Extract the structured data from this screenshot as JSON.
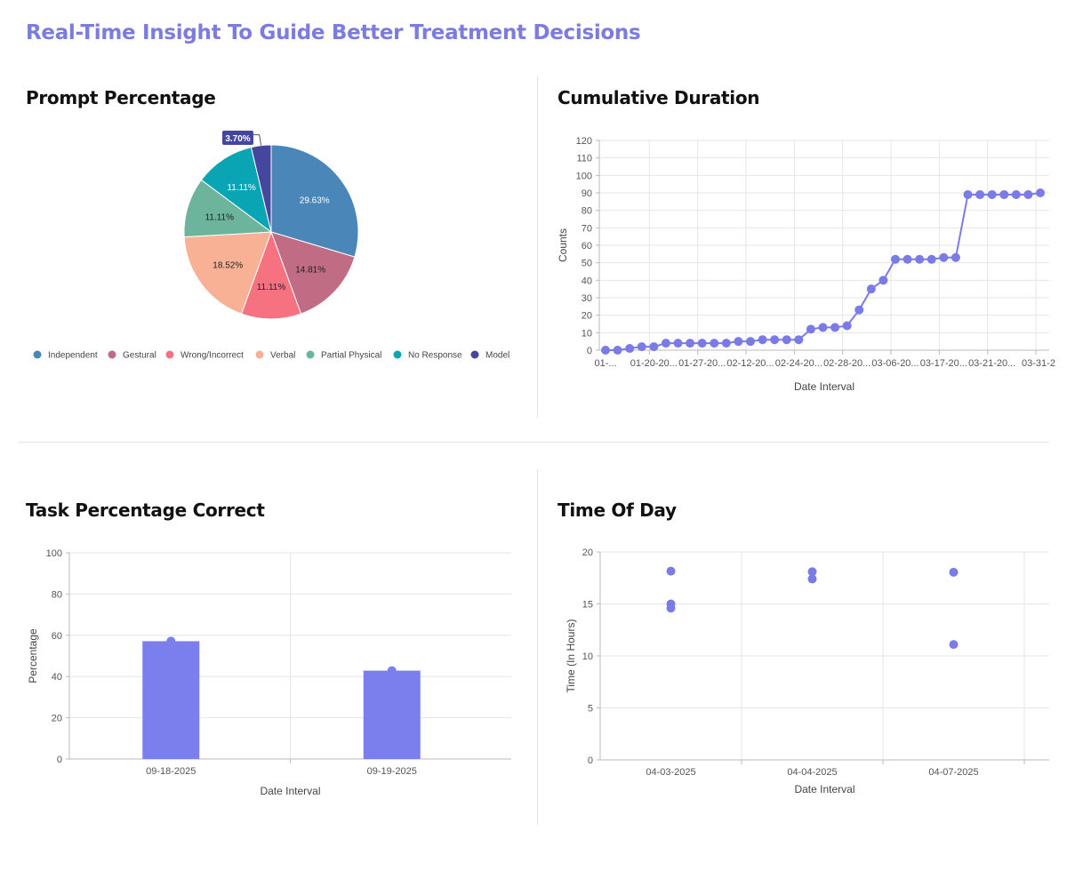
{
  "page": {
    "title": "Real-Time Insight To Guide Better Treatment Decisions"
  },
  "colors": {
    "accent": "#7b7be8",
    "title": "#7b7be0"
  },
  "chart_data": [
    {
      "title": "Prompt Percentage",
      "type": "pie",
      "legend_position": "bottom",
      "slices": [
        {
          "name": "Independent",
          "value": 29.63,
          "label": "29.63%",
          "color": "#4a86b8"
        },
        {
          "name": "Gestural",
          "value": 14.81,
          "label": "14.81%",
          "color": "#c06c84"
        },
        {
          "name": "Wrong/Incorrect",
          "value": 11.11,
          "label": "11.11%",
          "color": "#f67280"
        },
        {
          "name": "Verbal",
          "value": 18.52,
          "label": "18.52%",
          "color": "#f8b195"
        },
        {
          "name": "Partial Physical",
          "value": 11.11,
          "label": "11.11%",
          "color": "#6cb49b"
        },
        {
          "name": "No Response",
          "value": 11.11,
          "label": "11.11%",
          "color": "#0aa5b5"
        },
        {
          "name": "Model",
          "value": 3.7,
          "label": "3.70%",
          "color": "#45479e"
        }
      ]
    },
    {
      "title": "Cumulative Duration",
      "type": "line",
      "xlabel": "Date Interval",
      "ylabel": "Counts",
      "ylim": [
        0,
        120
      ],
      "yticks": [
        0,
        10,
        20,
        30,
        40,
        50,
        60,
        70,
        80,
        90,
        100,
        110,
        120
      ],
      "grid": true,
      "x_tick_labels": [
        "01-...",
        "01-20-20...",
        "01-27-20...",
        "02-12-20...",
        "02-24-20...",
        "02-28-20...",
        "03-06-20...",
        "03-17-20...",
        "03-21-20...",
        "03-31-2"
      ],
      "values": [
        0,
        0,
        1,
        2,
        2,
        4,
        4,
        4,
        4,
        4,
        4,
        5,
        5,
        6,
        6,
        6,
        6,
        12,
        13,
        13,
        14,
        23,
        35,
        40,
        52,
        52,
        52,
        52,
        53,
        53,
        89,
        89,
        89,
        89,
        89,
        89,
        90
      ],
      "color": "#7b7be8"
    },
    {
      "title": "Task Percentage Correct",
      "type": "bar",
      "xlabel": "Date Interval",
      "ylabel": "Percentage",
      "ylim": [
        0,
        100
      ],
      "yticks": [
        0,
        20,
        40,
        60,
        80,
        100
      ],
      "grid": true,
      "categories": [
        "09-18-2025",
        "09-19-2025"
      ],
      "values": [
        57.14,
        42.86
      ],
      "color": "#7b7fee"
    },
    {
      "title": "Time Of Day",
      "type": "scatter",
      "xlabel": "Date Interval",
      "ylabel": "Time (In Hours)",
      "ylim": [
        0,
        20
      ],
      "yticks": [
        0,
        5,
        10,
        15,
        20
      ],
      "grid": true,
      "categories": [
        "04-03-2025",
        "04-04-2025",
        "04-07-2025"
      ],
      "points": [
        {
          "x": "04-03-2025",
          "y": 18.15
        },
        {
          "x": "04-03-2025",
          "y": 15.0
        },
        {
          "x": "04-03-2025",
          "y": 14.6
        },
        {
          "x": "04-04-2025",
          "y": 18.1
        },
        {
          "x": "04-04-2025",
          "y": 17.4
        },
        {
          "x": "04-07-2025",
          "y": 18.05
        },
        {
          "x": "04-07-2025",
          "y": 11.1
        }
      ],
      "color": "#7b7be8"
    }
  ]
}
